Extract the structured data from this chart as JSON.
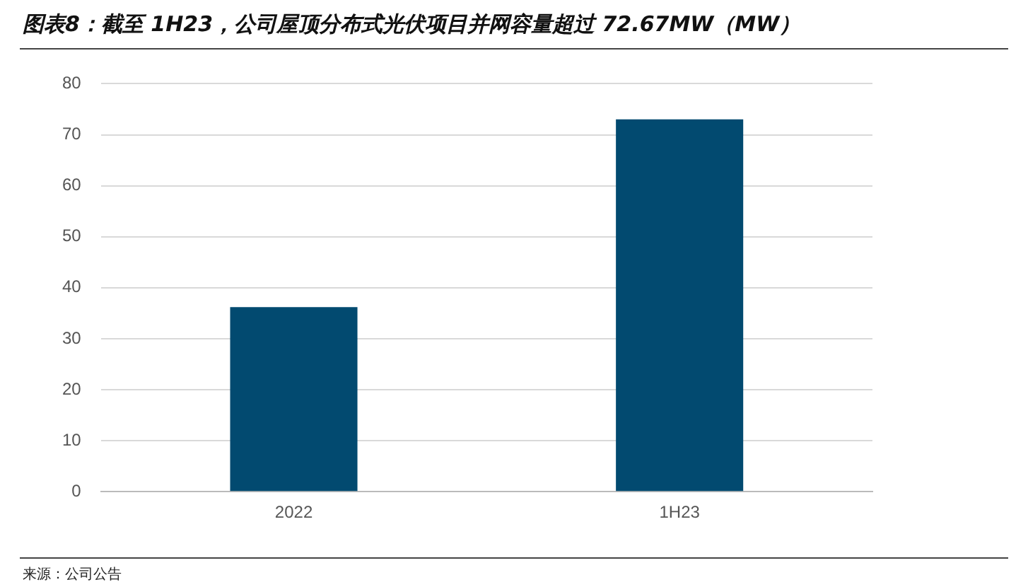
{
  "chart_data": {
    "type": "bar",
    "title": "图表8：截至 1H23，公司屋顶分布式光伏项目并网容量超过 72.67MW（MW）",
    "categories": [
      "2022",
      "1H23"
    ],
    "values": [
      36.2,
      73
    ],
    "color": "#024a70",
    "ylim": [
      0,
      80
    ],
    "yticks": [
      0,
      10,
      20,
      30,
      40,
      50,
      60,
      70,
      80
    ],
    "grid": "y",
    "legend": false,
    "annotations": [
      "来源：公司公告"
    ]
  }
}
